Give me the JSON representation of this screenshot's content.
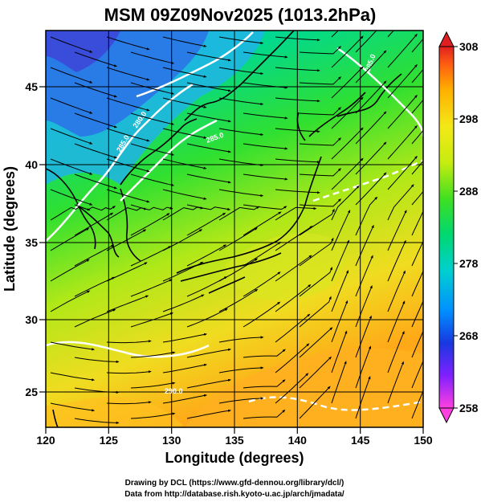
{
  "figure": {
    "title": "MSM 09Z09Nov2025 (1013.2hPa)",
    "xlabel": "Longitude (degrees)",
    "ylabel": "Latitude  (degrees)",
    "xticks": [
      "120",
      "125",
      "130",
      "135",
      "140",
      "145",
      "150"
    ],
    "yticks": [
      "25",
      "30",
      "35",
      "40",
      "45"
    ],
    "xlim": [
      120,
      150
    ],
    "ylim": [
      22.4,
      47.6
    ],
    "colorbar": {
      "ticks": [
        "258",
        "268",
        "278",
        "288",
        "298",
        "308"
      ],
      "range": [
        258,
        308
      ],
      "colors": [
        "#ff40e0",
        "#8020ff",
        "#1838e0",
        "#0090ff",
        "#00d0d0",
        "#00d870",
        "#40e020",
        "#c8ec10",
        "#f4e818",
        "#ffb000",
        "#ff6010",
        "#e02020"
      ]
    },
    "credit_line1": "Drawing by DCL (https://www.gfd-dennou.org/library/dcl/)",
    "credit_line2": "Data from http://database.rish.kyoto-u.ac.jp/arch/jmadata/"
  },
  "contour_labels": [
    "285.0",
    "285.0",
    "285.0",
    "290.0",
    "280.0"
  ],
  "legend_icons": {
    "top": "triangle-up-icon",
    "bottom": "triangle-down-icon"
  }
}
